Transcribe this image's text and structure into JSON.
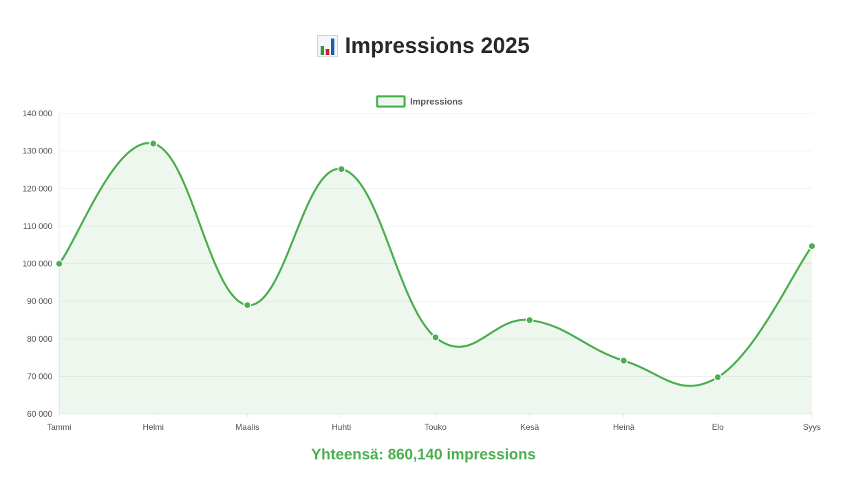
{
  "page": {
    "title": "Impressions 2025",
    "title_icon": "bar-chart-icon",
    "total_text": "Yhteensä: 860,140 impressions"
  },
  "colors": {
    "line": "#4caf50",
    "fill": "rgba(76,175,80,0.10)",
    "grid": "#eeeeee",
    "axis_text": "#555555",
    "icon_bar_green": "#2e9c3a",
    "icon_bar_red": "#c62828",
    "icon_bar_blue": "#1e5fb8"
  },
  "chart_data": {
    "type": "line",
    "smooth": true,
    "filled": true,
    "categories": [
      "Tammi",
      "Helmi",
      "Maalis",
      "Huhti",
      "Touko",
      "Kesä",
      "Heinä",
      "Elo",
      "Syys"
    ],
    "series": [
      {
        "name": "Impressions",
        "values": [
          100000,
          132000,
          89000,
          125200,
          80400,
          85000,
          74200,
          69800,
          104700
        ]
      }
    ],
    "ylim": [
      60000,
      140000
    ],
    "yticks": [
      60000,
      70000,
      80000,
      90000,
      100000,
      110000,
      120000,
      130000,
      140000
    ],
    "ytick_labels": [
      "60 000",
      "70 000",
      "80 000",
      "90 000",
      "100 000",
      "110 000",
      "120 000",
      "130 000",
      "140 000"
    ],
    "grid": true,
    "legend_position": "top-center"
  }
}
